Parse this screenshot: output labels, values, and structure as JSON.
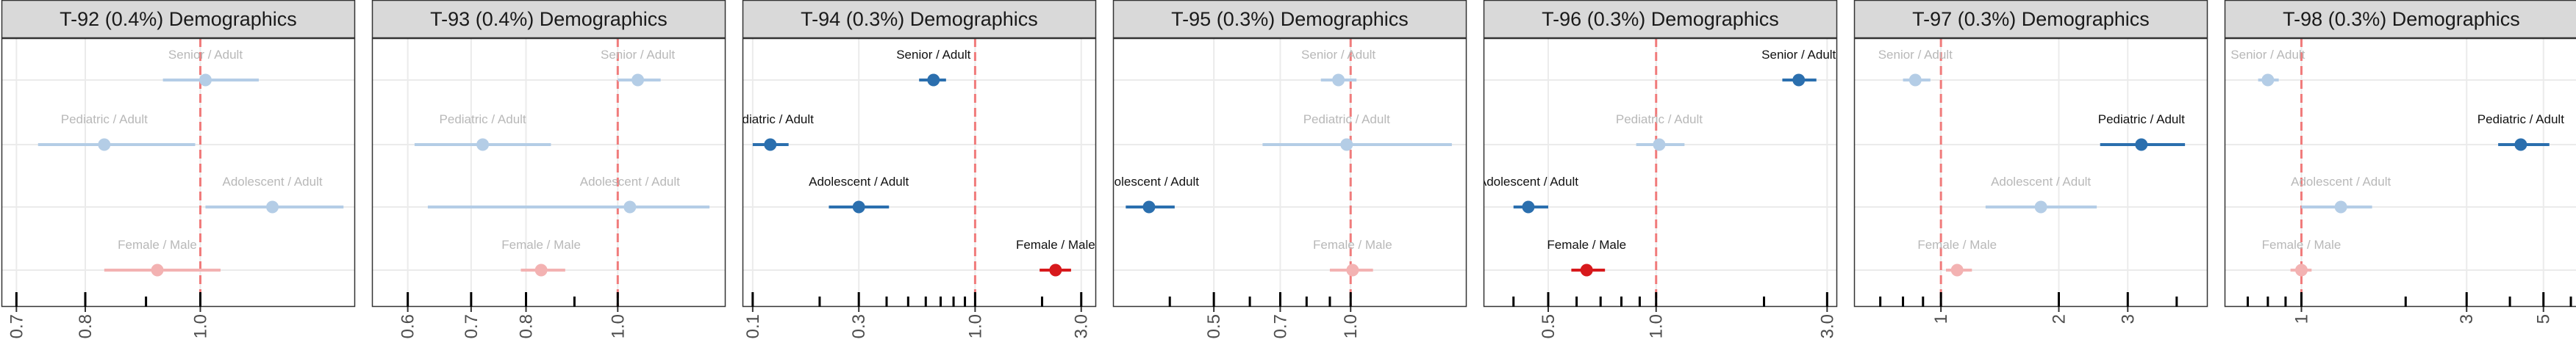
{
  "chart_data": [
    {
      "type": "scatter",
      "title": "T-92 (0.4%) Demographics",
      "scale": "log",
      "xlim": [
        0.68,
        1.35
      ],
      "ticks": [
        0.7,
        0.8,
        1.0
      ],
      "tick_labels": [
        "0.7",
        "0.8",
        "1.0"
      ],
      "reference_line": 1.0,
      "rows": [
        {
          "label": "Senior / Adult",
          "estimate": 1.01,
          "low": 0.93,
          "high": 1.12,
          "significant": false,
          "group": "age"
        },
        {
          "label": "Pediatric / Adult",
          "estimate": 0.83,
          "low": 0.73,
          "high": 0.99,
          "significant": false,
          "group": "age"
        },
        {
          "label": "Adolescent / Adult",
          "estimate": 1.15,
          "low": 1.01,
          "high": 1.32,
          "significant": false,
          "group": "age"
        },
        {
          "label": "Female / Male",
          "estimate": 0.92,
          "low": 0.83,
          "high": 1.04,
          "significant": false,
          "group": "sex"
        }
      ]
    },
    {
      "type": "scatter",
      "title": "T-93 (0.4%) Demographics",
      "scale": "log",
      "xlim": [
        0.55,
        1.3
      ],
      "ticks": [
        0.6,
        0.7,
        0.8,
        1.0
      ],
      "tick_labels": [
        "0.6",
        "0.7",
        "0.8",
        "1.0"
      ],
      "reference_line": 1.0,
      "rows": [
        {
          "label": "Senior / Adult",
          "estimate": 1.05,
          "low": 1.0,
          "high": 1.11,
          "significant": false,
          "group": "age"
        },
        {
          "label": "Pediatric / Adult",
          "estimate": 0.72,
          "low": 0.61,
          "high": 0.85,
          "significant": false,
          "group": "age"
        },
        {
          "label": "Adolescent / Adult",
          "estimate": 1.03,
          "low": 0.63,
          "high": 1.25,
          "significant": false,
          "group": "age"
        },
        {
          "label": "Female / Male",
          "estimate": 0.83,
          "low": 0.79,
          "high": 0.88,
          "significant": false,
          "group": "sex"
        }
      ]
    },
    {
      "type": "scatter",
      "title": "T-94 (0.3%) Demographics",
      "scale": "log",
      "xlim": [
        0.09,
        3.5
      ],
      "ticks": [
        0.1,
        0.3,
        1.0,
        3.0
      ],
      "tick_labels": [
        "0.1",
        "0.3",
        "1.0",
        "3.0"
      ],
      "reference_line": 1.0,
      "rows": [
        {
          "label": "Senior / Adult",
          "estimate": 0.65,
          "low": 0.56,
          "high": 0.74,
          "significant": true,
          "group": "age"
        },
        {
          "label": "Pediatric / Adult",
          "estimate": 0.12,
          "low": 0.1,
          "high": 0.145,
          "significant": true,
          "group": "age"
        },
        {
          "label": "Adolescent / Adult",
          "estimate": 0.3,
          "low": 0.22,
          "high": 0.41,
          "significant": true,
          "group": "age"
        },
        {
          "label": "Female / Male",
          "estimate": 2.3,
          "low": 1.95,
          "high": 2.7,
          "significant": true,
          "group": "sex"
        }
      ]
    },
    {
      "type": "scatter",
      "title": "T-95 (0.3%) Demographics",
      "scale": "log",
      "xlim": [
        0.3,
        1.8
      ],
      "ticks": [
        0.5,
        0.7,
        1.0
      ],
      "tick_labels": [
        "0.5",
        "0.7",
        "1.0"
      ],
      "reference_line": 1.0,
      "rows": [
        {
          "label": "Senior / Adult",
          "estimate": 0.94,
          "low": 0.86,
          "high": 1.03,
          "significant": false,
          "group": "age"
        },
        {
          "label": "Pediatric / Adult",
          "estimate": 0.98,
          "low": 0.64,
          "high": 1.67,
          "significant": false,
          "group": "age"
        },
        {
          "label": "Adolescent / Adult",
          "estimate": 0.36,
          "low": 0.32,
          "high": 0.41,
          "significant": true,
          "group": "age"
        },
        {
          "label": "Female / Male",
          "estimate": 1.01,
          "low": 0.9,
          "high": 1.12,
          "significant": false,
          "group": "sex"
        }
      ]
    },
    {
      "type": "scatter",
      "title": "T-96 (0.3%) Demographics",
      "scale": "log",
      "xlim": [
        0.33,
        3.2
      ],
      "ticks": [
        0.5,
        1.0,
        3.0
      ],
      "tick_labels": [
        "0.5",
        "1.0",
        "3.0"
      ],
      "reference_line": 1.0,
      "rows": [
        {
          "label": "Senior / Adult",
          "estimate": 2.5,
          "low": 2.25,
          "high": 2.8,
          "significant": true,
          "group": "age"
        },
        {
          "label": "Pediatric / Adult",
          "estimate": 1.02,
          "low": 0.88,
          "high": 1.2,
          "significant": false,
          "group": "age"
        },
        {
          "label": "Adolescent / Adult",
          "estimate": 0.44,
          "low": 0.4,
          "high": 0.5,
          "significant": true,
          "group": "age"
        },
        {
          "label": "Female / Male",
          "estimate": 0.64,
          "low": 0.58,
          "high": 0.72,
          "significant": true,
          "group": "sex"
        }
      ]
    },
    {
      "type": "scatter",
      "title": "T-97 (0.3%) Demographics",
      "scale": "log",
      "xlim": [
        0.6,
        4.8
      ],
      "ticks": [
        1,
        2,
        3
      ],
      "tick_labels": [
        "1",
        "2",
        "3"
      ],
      "reference_line": 1.0,
      "rows": [
        {
          "label": "Senior / Adult",
          "estimate": 0.86,
          "low": 0.8,
          "high": 0.94,
          "significant": false,
          "group": "age"
        },
        {
          "label": "Pediatric / Adult",
          "estimate": 3.25,
          "low": 2.55,
          "high": 4.2,
          "significant": true,
          "group": "age"
        },
        {
          "label": "Adolescent / Adult",
          "estimate": 1.8,
          "low": 1.3,
          "high": 2.5,
          "significant": false,
          "group": "age"
        },
        {
          "label": "Female / Male",
          "estimate": 1.1,
          "low": 1.03,
          "high": 1.2,
          "significant": false,
          "group": "sex"
        }
      ]
    },
    {
      "type": "scatter",
      "title": "T-98 (0.3%) Demographics",
      "scale": "log",
      "xlim": [
        0.6,
        6.3
      ],
      "ticks": [
        1,
        3,
        5
      ],
      "tick_labels": [
        "1",
        "3",
        "5"
      ],
      "reference_line": 1.0,
      "rows": [
        {
          "label": "Senior / Adult",
          "estimate": 0.8,
          "low": 0.75,
          "high": 0.86,
          "significant": false,
          "group": "age"
        },
        {
          "label": "Pediatric / Adult",
          "estimate": 4.3,
          "low": 3.7,
          "high": 5.2,
          "significant": true,
          "group": "age"
        },
        {
          "label": "Adolescent / Adult",
          "estimate": 1.3,
          "low": 1.0,
          "high": 1.6,
          "significant": false,
          "group": "age"
        },
        {
          "label": "Female / Male",
          "estimate": 1.0,
          "low": 0.93,
          "high": 1.07,
          "significant": false,
          "group": "sex"
        }
      ]
    }
  ],
  "colors": {
    "age_significant": "#2b6fae",
    "age_faded": "#b4cde6",
    "sex_significant": "#d7191c",
    "sex_faded": "#f3b2b2",
    "label_significant": "#111111",
    "label_faded": "#b8b8b8",
    "reference_line": "#f07b7b",
    "strip_fill": "#d9d9d9",
    "strip_border": "#333333",
    "grid": "#ebebeb",
    "panel_border": "#333333"
  }
}
